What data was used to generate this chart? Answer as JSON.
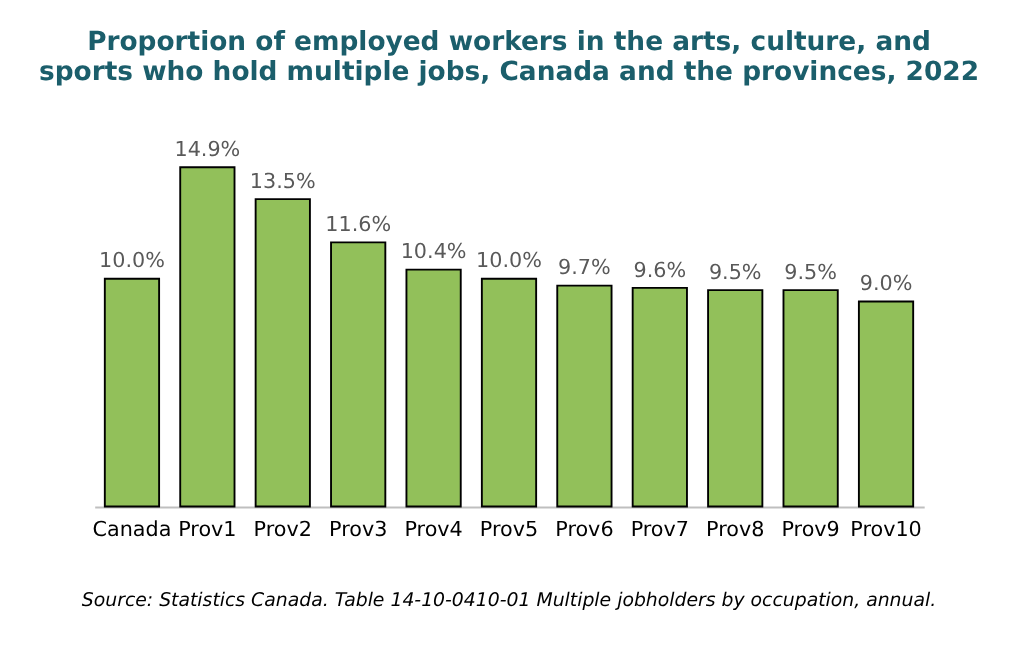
{
  "chart_data": {
    "type": "bar",
    "title": "Proportion of employed workers in the arts, culture, and sports who hold multiple jobs, Canada and the provinces, 2022",
    "categories": [
      "Canada",
      "Prov1",
      "Prov2",
      "Prov3",
      "Prov4",
      "Prov5",
      "Prov6",
      "Prov7",
      "Prov8",
      "Prov9",
      "Prov10"
    ],
    "values": [
      10.0,
      14.9,
      13.5,
      11.6,
      10.4,
      10.0,
      9.7,
      9.6,
      9.5,
      9.5,
      9.0
    ],
    "value_labels": [
      "10.0%",
      "14.9%",
      "13.5%",
      "11.6%",
      "10.4%",
      "10.0%",
      "9.7%",
      "9.6%",
      "9.5%",
      "9.5%",
      "9.0%"
    ],
    "color": "#92c05a",
    "annotations": [
      "Source: Statistics Canada. Table 14-10-0410-01  Multiple jobholders by occupation, annual."
    ]
  }
}
